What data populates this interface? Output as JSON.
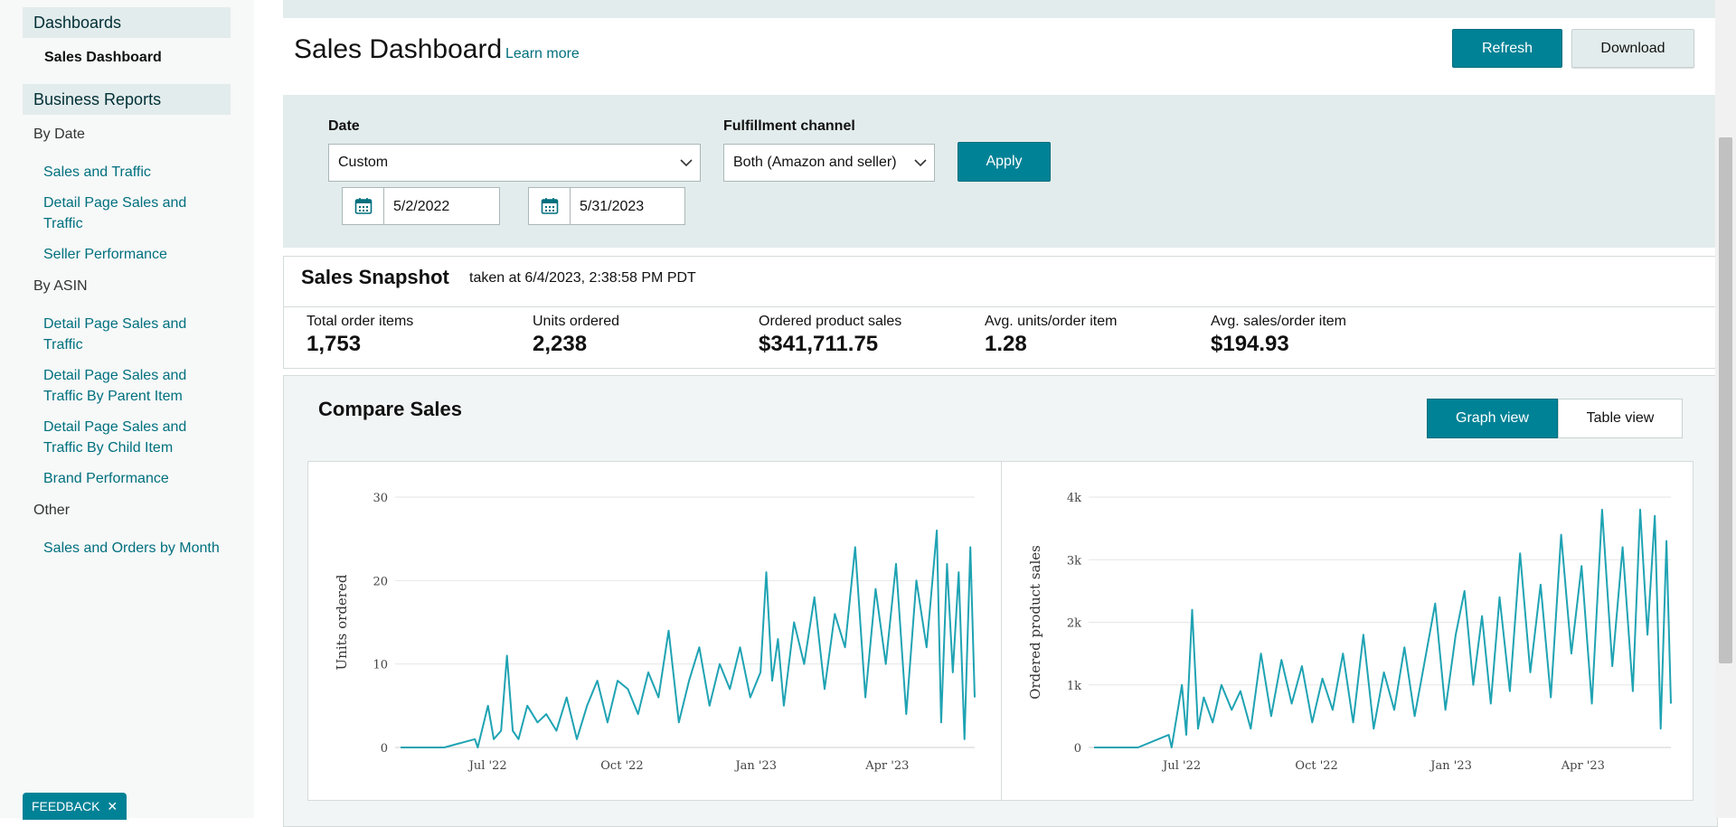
{
  "sidebar": {
    "dashboards_header": "Dashboards",
    "sales_dashboard": "Sales Dashboard",
    "business_reports_header": "Business Reports",
    "by_date_label": "By Date",
    "by_date_links": [
      "Sales and Traffic",
      "Detail Page Sales and Traffic",
      "Seller Performance"
    ],
    "by_asin_label": "By ASIN",
    "by_asin_links": [
      "Detail Page Sales and Traffic",
      "Detail Page Sales and Traffic By Parent Item",
      "Detail Page Sales and Traffic By Child Item",
      "Brand Performance"
    ],
    "other_label": "Other",
    "other_links": [
      "Sales and Orders by Month"
    ]
  },
  "feedback": {
    "label": "FEEDBACK",
    "close": "✕"
  },
  "header": {
    "title": "Sales Dashboard",
    "learn_more": "Learn more",
    "refresh_label": "Refresh",
    "download_label": "Download"
  },
  "filters": {
    "date_label": "Date",
    "date_value": "Custom",
    "fulfillment_label": "Fulfillment channel",
    "fulfillment_value": "Both (Amazon and seller)",
    "apply_label": "Apply",
    "start_date": "5/2/2022",
    "end_date": "5/31/2023"
  },
  "snapshot": {
    "title": "Sales Snapshot",
    "timestamp": "taken at 6/4/2023, 2:38:58 PM PDT",
    "metrics": [
      {
        "label": "Total order items",
        "value": "1,753"
      },
      {
        "label": "Units ordered",
        "value": "2,238"
      },
      {
        "label": "Ordered product sales",
        "value": "$341,711.75"
      },
      {
        "label": "Avg. units/order item",
        "value": "1.28"
      },
      {
        "label": "Avg. sales/order item",
        "value": "$194.93"
      }
    ]
  },
  "compare": {
    "title": "Compare Sales",
    "graph_view_label": "Graph view",
    "table_view_label": "Table view"
  },
  "colors": {
    "accent": "#008296",
    "line": "#1fa3b3",
    "panel": "#e3ecec"
  },
  "chart_data": [
    {
      "type": "line",
      "ylabel": "Units ordered",
      "ylim": [
        0,
        30
      ],
      "yticks": [
        "0",
        "10",
        "20",
        "30"
      ],
      "xticks": [
        "Jul '22",
        "Oct '22",
        "Jan '23",
        "Apr '23"
      ],
      "x_range": [
        "2022-05-02",
        "2023-05-31"
      ],
      "grid": true,
      "series": [
        {
          "x": [
            "2022-05-02",
            "2022-06-01",
            "2022-06-22",
            "2022-06-24",
            "2022-07-01",
            "2022-07-05",
            "2022-07-10",
            "2022-07-14",
            "2022-07-18",
            "2022-07-22",
            "2022-07-28",
            "2022-08-04",
            "2022-08-10",
            "2022-08-17",
            "2022-08-24",
            "2022-08-31",
            "2022-09-07",
            "2022-09-14",
            "2022-09-21",
            "2022-09-28",
            "2022-10-05",
            "2022-10-12",
            "2022-10-19",
            "2022-10-26",
            "2022-11-02",
            "2022-11-09",
            "2022-11-16",
            "2022-11-23",
            "2022-11-30",
            "2022-12-07",
            "2022-12-14",
            "2022-12-21",
            "2022-12-28",
            "2023-01-04",
            "2023-01-08",
            "2023-01-12",
            "2023-01-16",
            "2023-01-20",
            "2023-01-27",
            "2023-02-03",
            "2023-02-10",
            "2023-02-17",
            "2023-02-24",
            "2023-03-03",
            "2023-03-10",
            "2023-03-17",
            "2023-03-24",
            "2023-03-31",
            "2023-04-07",
            "2023-04-14",
            "2023-04-21",
            "2023-04-28",
            "2023-05-05",
            "2023-05-08",
            "2023-05-12",
            "2023-05-16",
            "2023-05-20",
            "2023-05-24",
            "2023-05-28",
            "2023-05-31"
          ],
          "y": [
            0,
            0,
            1,
            0,
            5,
            1,
            2,
            11,
            2,
            1,
            5,
            3,
            4,
            2,
            6,
            1,
            5,
            8,
            3,
            8,
            7,
            4,
            9,
            6,
            14,
            3,
            8,
            12,
            5,
            10,
            7,
            12,
            6,
            9,
            21,
            8,
            13,
            5,
            15,
            10,
            18,
            7,
            16,
            12,
            24,
            6,
            19,
            10,
            22,
            4,
            20,
            12,
            26,
            3,
            22,
            9,
            21,
            1,
            24,
            6
          ]
        }
      ]
    },
    {
      "type": "line",
      "ylabel": "Ordered product sales",
      "ylim": [
        0,
        4000
      ],
      "yticks": [
        "0",
        "1k",
        "2k",
        "3k",
        "4k"
      ],
      "xticks": [
        "Jul '22",
        "Oct '22",
        "Jan '23",
        "Apr '23"
      ],
      "x_range": [
        "2022-05-02",
        "2023-05-31"
      ],
      "grid": true,
      "series": [
        {
          "x": [
            "2022-05-02",
            "2022-06-01",
            "2022-06-22",
            "2022-06-24",
            "2022-07-01",
            "2022-07-04",
            "2022-07-08",
            "2022-07-12",
            "2022-07-16",
            "2022-07-22",
            "2022-07-28",
            "2022-08-04",
            "2022-08-10",
            "2022-08-17",
            "2022-08-24",
            "2022-08-31",
            "2022-09-07",
            "2022-09-14",
            "2022-09-21",
            "2022-09-28",
            "2022-10-05",
            "2022-10-12",
            "2022-10-19",
            "2022-10-26",
            "2022-11-02",
            "2022-11-09",
            "2022-11-16",
            "2022-11-23",
            "2022-11-30",
            "2022-12-07",
            "2022-12-14",
            "2022-12-21",
            "2022-12-28",
            "2023-01-04",
            "2023-01-10",
            "2023-01-16",
            "2023-01-22",
            "2023-01-28",
            "2023-02-03",
            "2023-02-10",
            "2023-02-17",
            "2023-02-24",
            "2023-03-03",
            "2023-03-10",
            "2023-03-17",
            "2023-03-24",
            "2023-03-31",
            "2023-04-07",
            "2023-04-14",
            "2023-04-21",
            "2023-04-28",
            "2023-05-05",
            "2023-05-10",
            "2023-05-15",
            "2023-05-20",
            "2023-05-24",
            "2023-05-28",
            "2023-05-31"
          ],
          "y": [
            0,
            0,
            200,
            0,
            1000,
            200,
            2200,
            300,
            800,
            400,
            1000,
            600,
            900,
            300,
            1500,
            500,
            1400,
            700,
            1300,
            400,
            1100,
            600,
            1500,
            400,
            1800,
            300,
            1200,
            600,
            1600,
            500,
            1400,
            2300,
            600,
            1800,
            2500,
            1000,
            2100,
            700,
            2400,
            900,
            3100,
            1200,
            2600,
            800,
            3400,
            1500,
            2900,
            700,
            3800,
            1300,
            3200,
            900,
            3800,
            1800,
            3700,
            300,
            3300,
            700
          ]
        }
      ]
    }
  ]
}
